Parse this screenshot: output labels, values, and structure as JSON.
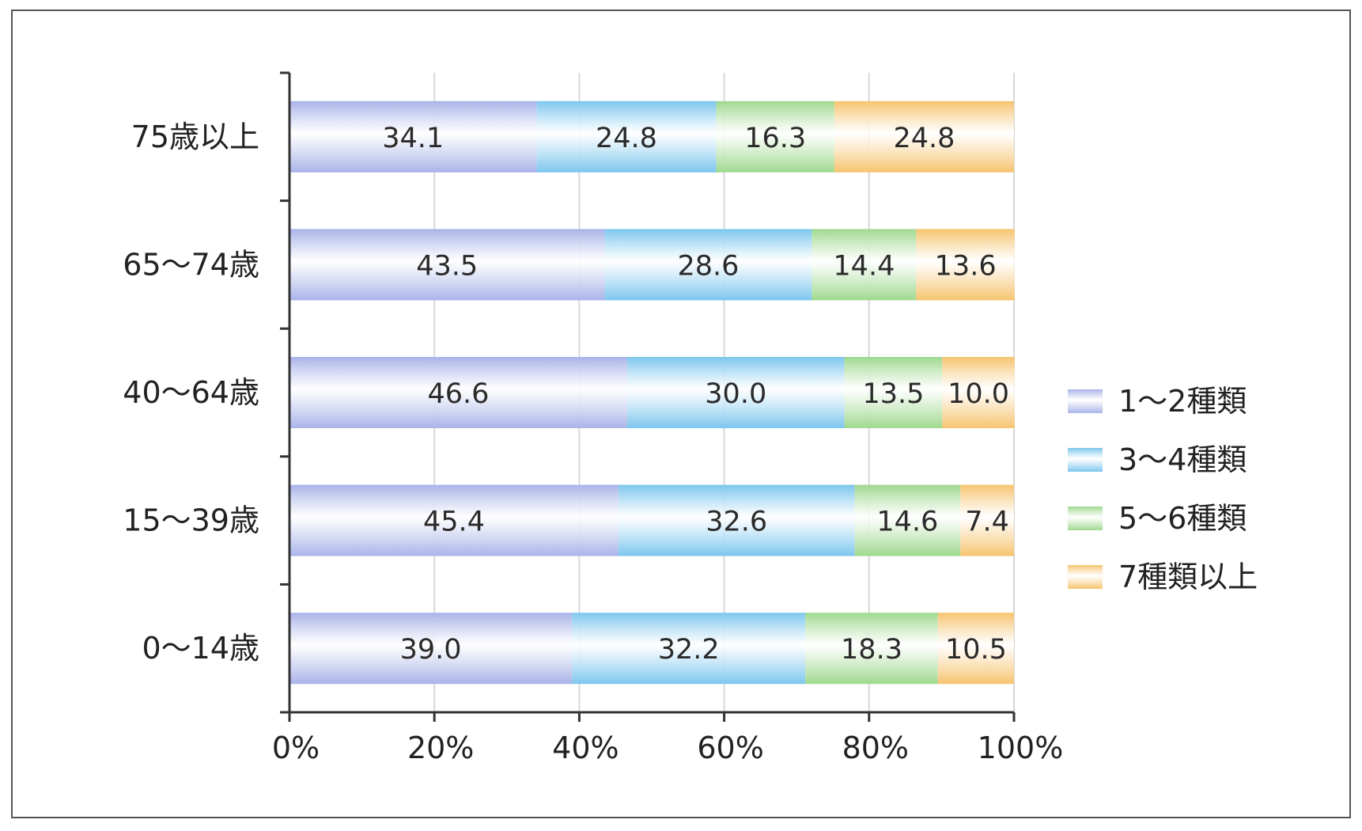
{
  "chart_data": {
    "type": "bar",
    "orientation": "horizontal",
    "stacked": true,
    "title": "",
    "xlabel": "",
    "ylabel": "",
    "xlim": [
      0,
      100
    ],
    "x_ticks": [
      "0%",
      "20%",
      "40%",
      "60%",
      "80%",
      "100%"
    ],
    "categories": [
      "75歳以上",
      "65〜74歳",
      "40〜64歳",
      "15〜39歳",
      "0〜14歳"
    ],
    "series": [
      {
        "name": "1〜2種類",
        "color": "#a9b3e8",
        "values": [
          34.1,
          43.5,
          46.6,
          45.4,
          39.0
        ]
      },
      {
        "name": "3〜4種類",
        "color": "#7cc6ee",
        "values": [
          24.8,
          28.6,
          30.0,
          32.6,
          32.2
        ]
      },
      {
        "name": "5〜6種類",
        "color": "#9fd98e",
        "values": [
          16.3,
          14.4,
          13.5,
          14.6,
          18.3
        ]
      },
      {
        "name": "7種類以上",
        "color": "#f6c46f",
        "values": [
          24.8,
          13.6,
          10.0,
          7.4,
          10.5
        ]
      }
    ],
    "value_labels": [
      [
        "34.1",
        "24.8",
        "16.3",
        "24.8"
      ],
      [
        "43.5",
        "28.6",
        "14.4",
        "13.6"
      ],
      [
        "46.6",
        "30.0",
        "13.5",
        "10.0"
      ],
      [
        "45.4",
        "32.6",
        "14.6",
        "7.4"
      ],
      [
        "39.0",
        "32.2",
        "18.3",
        "10.5"
      ]
    ],
    "grid": true,
    "legend": "right"
  }
}
